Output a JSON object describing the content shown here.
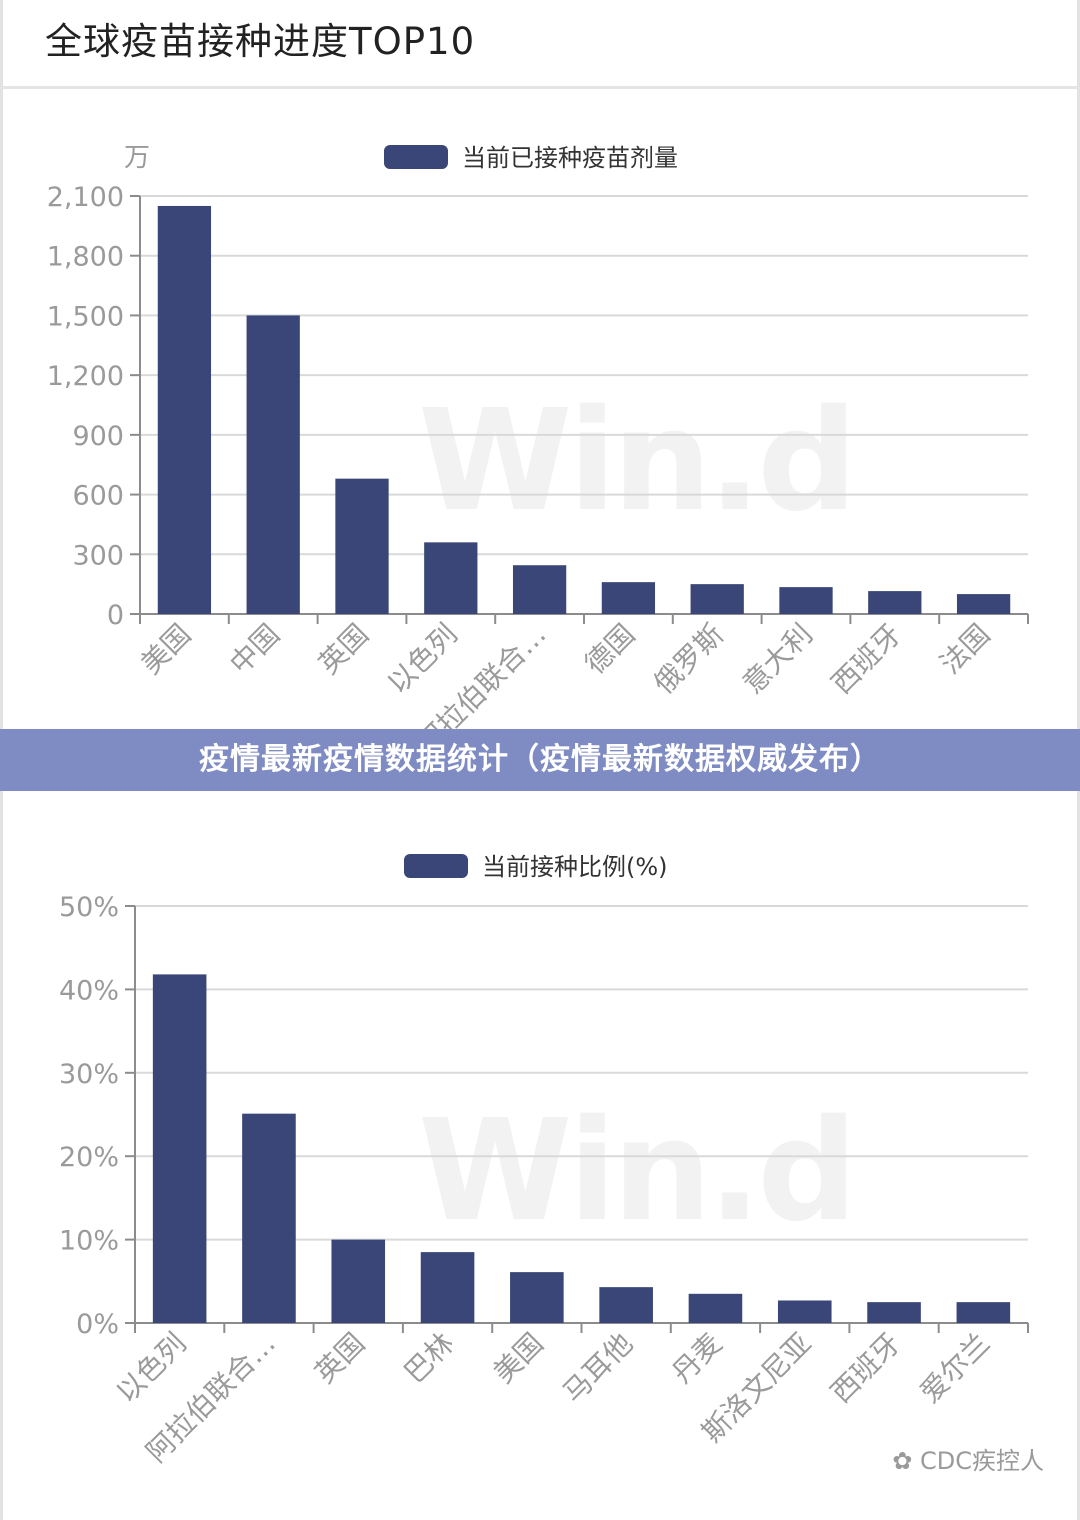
{
  "page_title": "全球疫苗接种进度TOP10",
  "banner_text": "疫情最新疫情数据统计（疫情最新数据权威发布）",
  "watermark_text": "Win.d",
  "footer_text": "CDC疾控人",
  "colors": {
    "bar": "#394677",
    "grid": "#d9d9d9",
    "axis": "#9a9a9a",
    "banner": "#7f8bc3"
  },
  "chart_data": [
    {
      "type": "bar",
      "title": "",
      "legend": "当前已接种疫苗剂量",
      "unit_label": "万",
      "ylim": [
        0,
        2100
      ],
      "yticks": [
        0,
        300,
        600,
        900,
        1200,
        1500,
        1800,
        2100
      ],
      "ytick_labels": [
        "0",
        "300",
        "600",
        "900",
        "1,200",
        "1,500",
        "1,800",
        "2,100"
      ],
      "categories": [
        "美国",
        "中国",
        "英国",
        "以色列",
        "阿拉伯联合…",
        "德国",
        "俄罗斯",
        "意大利",
        "西班牙",
        "法国"
      ],
      "values": [
        2050,
        1500,
        680,
        360,
        245,
        160,
        150,
        135,
        115,
        100
      ],
      "grid": true,
      "legend_position": "top-center"
    },
    {
      "type": "bar",
      "title": "",
      "legend": "当前接种比例(%)",
      "ylim": [
        0,
        50
      ],
      "yticks": [
        0,
        10,
        20,
        30,
        40,
        50
      ],
      "ytick_labels": [
        "0%",
        "10%",
        "20%",
        "30%",
        "40%",
        "50%"
      ],
      "categories": [
        "以色列",
        "阿拉伯联合…",
        "英国",
        "巴林",
        "美国",
        "马耳他",
        "丹麦",
        "斯洛文尼亚",
        "西班牙",
        "爱尔兰"
      ],
      "values": [
        41.8,
        25.1,
        10.0,
        8.5,
        6.1,
        4.3,
        3.5,
        2.7,
        2.5,
        2.5
      ],
      "grid": true,
      "legend_position": "top-center"
    }
  ]
}
